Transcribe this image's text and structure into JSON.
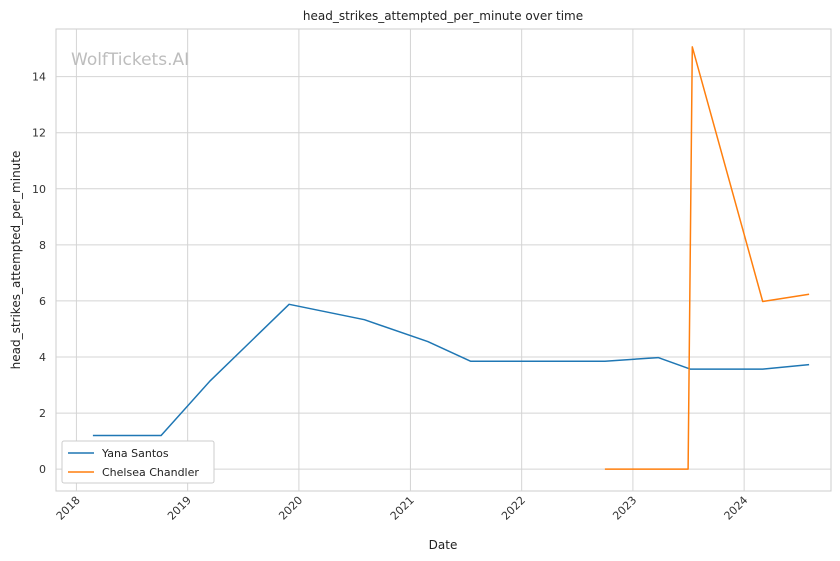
{
  "chart_data": {
    "type": "line",
    "title": "head_strikes_attempted_per_minute over time",
    "xlabel": "Date",
    "ylabel": "head_strikes_attempted_per_minute",
    "watermark": "WolfTickets.AI",
    "x_ticks": [
      "2018",
      "2019",
      "2020",
      "2021",
      "2022",
      "2023",
      "2024"
    ],
    "y_ticks": [
      0,
      2,
      4,
      6,
      8,
      10,
      12,
      14
    ],
    "xlim": [
      "2017-10-26",
      "2024-10-12"
    ],
    "ylim": [
      -0.78,
      15.7
    ],
    "grid": true,
    "legend_position": "lower-left",
    "series": [
      {
        "name": "Yana Santos",
        "color": "#1f77b4",
        "points": [
          [
            "2018-02-24",
            1.2
          ],
          [
            "2018-10-06",
            1.2
          ],
          [
            "2019-03-16",
            3.15
          ],
          [
            "2019-11-30",
            5.88
          ],
          [
            "2020-08-03",
            5.33
          ],
          [
            "2021-02-27",
            4.55
          ],
          [
            "2021-07-17",
            3.85
          ],
          [
            "2022-10-01",
            3.85
          ],
          [
            "2023-03-25",
            3.98
          ],
          [
            "2023-07-08",
            3.57
          ],
          [
            "2024-03-02",
            3.57
          ],
          [
            "2024-08-01",
            3.73
          ]
        ]
      },
      {
        "name": "Chelsea Chandler",
        "color": "#ff7f0e",
        "points": [
          [
            "2022-10-01",
            0.0
          ],
          [
            "2023-07-01",
            0.0
          ],
          [
            "2023-07-15",
            15.06
          ],
          [
            "2024-03-02",
            5.98
          ],
          [
            "2024-08-01",
            6.24
          ]
        ]
      }
    ]
  }
}
